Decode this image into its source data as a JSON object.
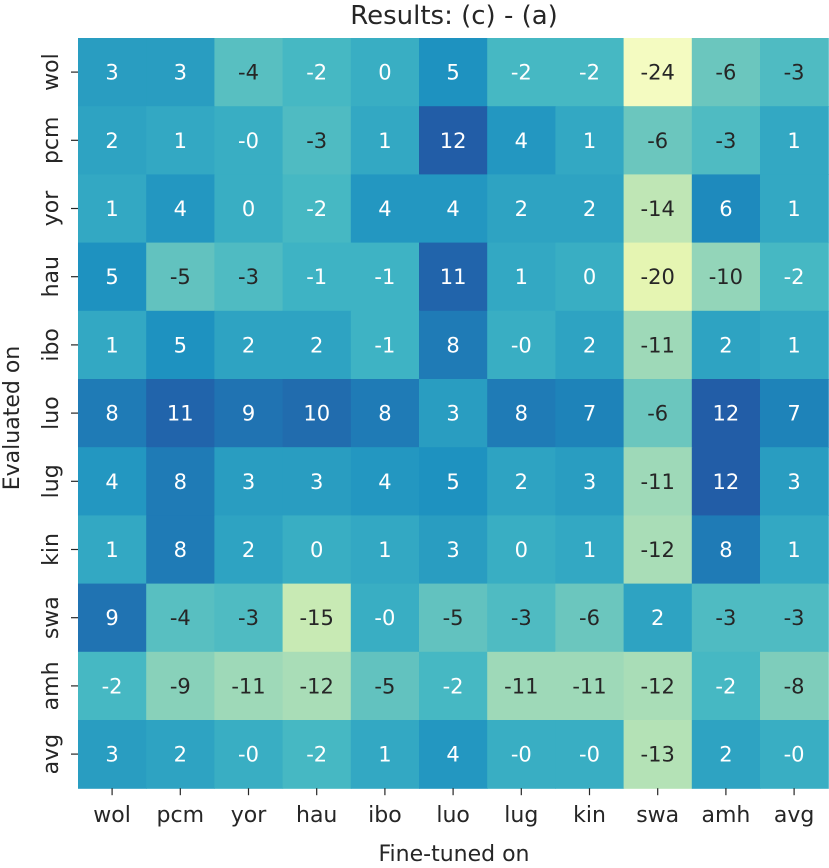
{
  "chart_data": {
    "type": "heatmap",
    "title": "Results: (c) - (a)",
    "xlabel": "Fine-tuned on",
    "ylabel": "Evaluated on",
    "x_categories": [
      "wol",
      "pcm",
      "yor",
      "hau",
      "ibo",
      "luo",
      "lug",
      "kin",
      "swa",
      "amh",
      "avg"
    ],
    "y_categories": [
      "wol",
      "pcm",
      "yor",
      "hau",
      "ibo",
      "luo",
      "lug",
      "kin",
      "swa",
      "amh",
      "avg"
    ],
    "values": [
      [
        3,
        3,
        -4,
        -2,
        0,
        5,
        -2,
        -2,
        -24,
        -6,
        -3
      ],
      [
        2,
        1,
        0,
        -3,
        1,
        12,
        4,
        1,
        -6,
        -3,
        1
      ],
      [
        1,
        4,
        0,
        -2,
        4,
        4,
        2,
        2,
        -14,
        6,
        1
      ],
      [
        5,
        -5,
        -3,
        -1,
        -1,
        11,
        1,
        0,
        -20,
        -10,
        -2
      ],
      [
        1,
        5,
        2,
        2,
        -1,
        8,
        0,
        2,
        -11,
        2,
        1
      ],
      [
        8,
        11,
        9,
        10,
        8,
        3,
        8,
        7,
        -6,
        12,
        7
      ],
      [
        4,
        8,
        3,
        3,
        4,
        5,
        2,
        3,
        -11,
        12,
        3
      ],
      [
        1,
        8,
        2,
        0,
        1,
        3,
        0,
        1,
        -12,
        8,
        1
      ],
      [
        9,
        -4,
        -3,
        -15,
        0,
        -5,
        -3,
        -6,
        2,
        -3,
        -3
      ],
      [
        -2,
        -9,
        -11,
        -12,
        -5,
        -2,
        -11,
        -11,
        -12,
        -2,
        -8
      ],
      [
        3,
        2,
        0,
        -2,
        1,
        4,
        0,
        0,
        -13,
        2,
        0
      ]
    ],
    "value_labels": [
      [
        "3",
        "3",
        "-4",
        "-2",
        "0",
        "5",
        "-2",
        "-2",
        "-24",
        "-6",
        "-3"
      ],
      [
        "2",
        "1",
        "-0",
        "-3",
        "1",
        "12",
        "4",
        "1",
        "-6",
        "-3",
        "1"
      ],
      [
        "1",
        "4",
        "0",
        "-2",
        "4",
        "4",
        "2",
        "2",
        "-14",
        "6",
        "1"
      ],
      [
        "5",
        "-5",
        "-3",
        "-1",
        "-1",
        "11",
        "1",
        "0",
        "-20",
        "-10",
        "-2"
      ],
      [
        "1",
        "5",
        "2",
        "2",
        "-1",
        "8",
        "-0",
        "2",
        "-11",
        "2",
        "1"
      ],
      [
        "8",
        "11",
        "9",
        "10",
        "8",
        "3",
        "8",
        "7",
        "-6",
        "12",
        "7"
      ],
      [
        "4",
        "8",
        "3",
        "3",
        "4",
        "5",
        "2",
        "3",
        "-11",
        "12",
        "3"
      ],
      [
        "1",
        "8",
        "2",
        "0",
        "1",
        "3",
        "0",
        "1",
        "-12",
        "8",
        "1"
      ],
      [
        "9",
        "-4",
        "-3",
        "-15",
        "-0",
        "-5",
        "-3",
        "-6",
        "2",
        "-3",
        "-3"
      ],
      [
        "-2",
        "-9",
        "-11",
        "-12",
        "-5",
        "-2",
        "-11",
        "-11",
        "-12",
        "-2",
        "-8"
      ],
      [
        "3",
        "2",
        "-0",
        "-2",
        "1",
        "4",
        "-0",
        "-0",
        "-13",
        "2",
        "-0"
      ]
    ],
    "colormap": "YlGnBu",
    "color_range": [
      -28,
      25
    ],
    "legend": "none",
    "grid": false,
    "text_colors": {
      "dark": "#262626",
      "light": "#ffffff"
    }
  }
}
